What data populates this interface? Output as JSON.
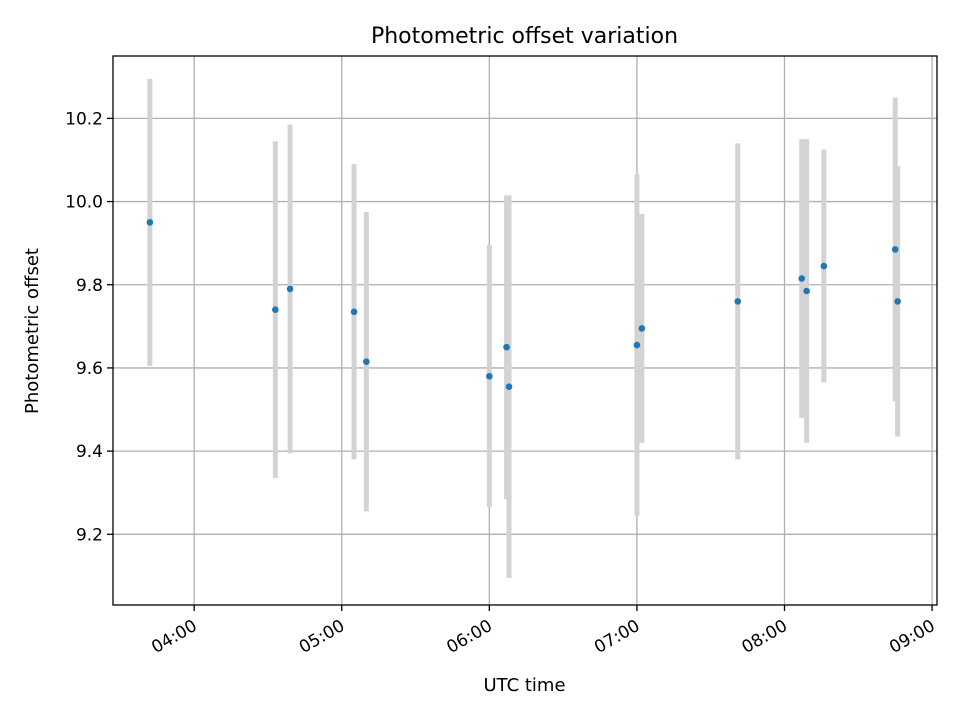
{
  "chart_data": {
    "type": "scatter",
    "title": "Photometric offset variation",
    "xlabel": "UTC time",
    "ylabel": "Photometric offset",
    "x_ticks": [
      "04:00",
      "05:00",
      "06:00",
      "07:00",
      "08:00",
      "09:00"
    ],
    "y_ticks": [
      "9.2",
      "9.4",
      "9.6",
      "9.8",
      "10.0",
      "10.2"
    ],
    "xlim": [
      "03:27",
      "09:02"
    ],
    "ylim": [
      9.03,
      10.35
    ],
    "grid": true,
    "series": [
      {
        "points": [
          {
            "x": "03:42",
            "y": 9.95,
            "err": 0.345
          },
          {
            "x": "04:33",
            "y": 9.74,
            "err": 0.405
          },
          {
            "x": "04:39",
            "y": 9.79,
            "err": 0.395
          },
          {
            "x": "05:05",
            "y": 9.735,
            "err": 0.355
          },
          {
            "x": "05:10",
            "y": 9.615,
            "err": 0.36
          },
          {
            "x": "06:00",
            "y": 9.58,
            "err": 0.315
          },
          {
            "x": "06:07",
            "y": 9.65,
            "err": 0.365
          },
          {
            "x": "06:08",
            "y": 9.555,
            "err": 0.46
          },
          {
            "x": "07:00",
            "y": 9.655,
            "err": 0.41
          },
          {
            "x": "07:02",
            "y": 9.695,
            "err": 0.275
          },
          {
            "x": "07:41",
            "y": 9.76,
            "err": 0.38
          },
          {
            "x": "08:07",
            "y": 9.815,
            "err": 0.335
          },
          {
            "x": "08:09",
            "y": 9.785,
            "err": 0.365
          },
          {
            "x": "08:16",
            "y": 9.845,
            "err": 0.28
          },
          {
            "x": "08:45",
            "y": 9.885,
            "err": 0.365
          },
          {
            "x": "08:46",
            "y": 9.76,
            "err": 0.325
          }
        ]
      }
    ],
    "colors": {
      "marker": "#1f77b4",
      "errorbar": "#d3d3d3",
      "grid": "#b0b0b0",
      "axes": "#000000"
    }
  }
}
